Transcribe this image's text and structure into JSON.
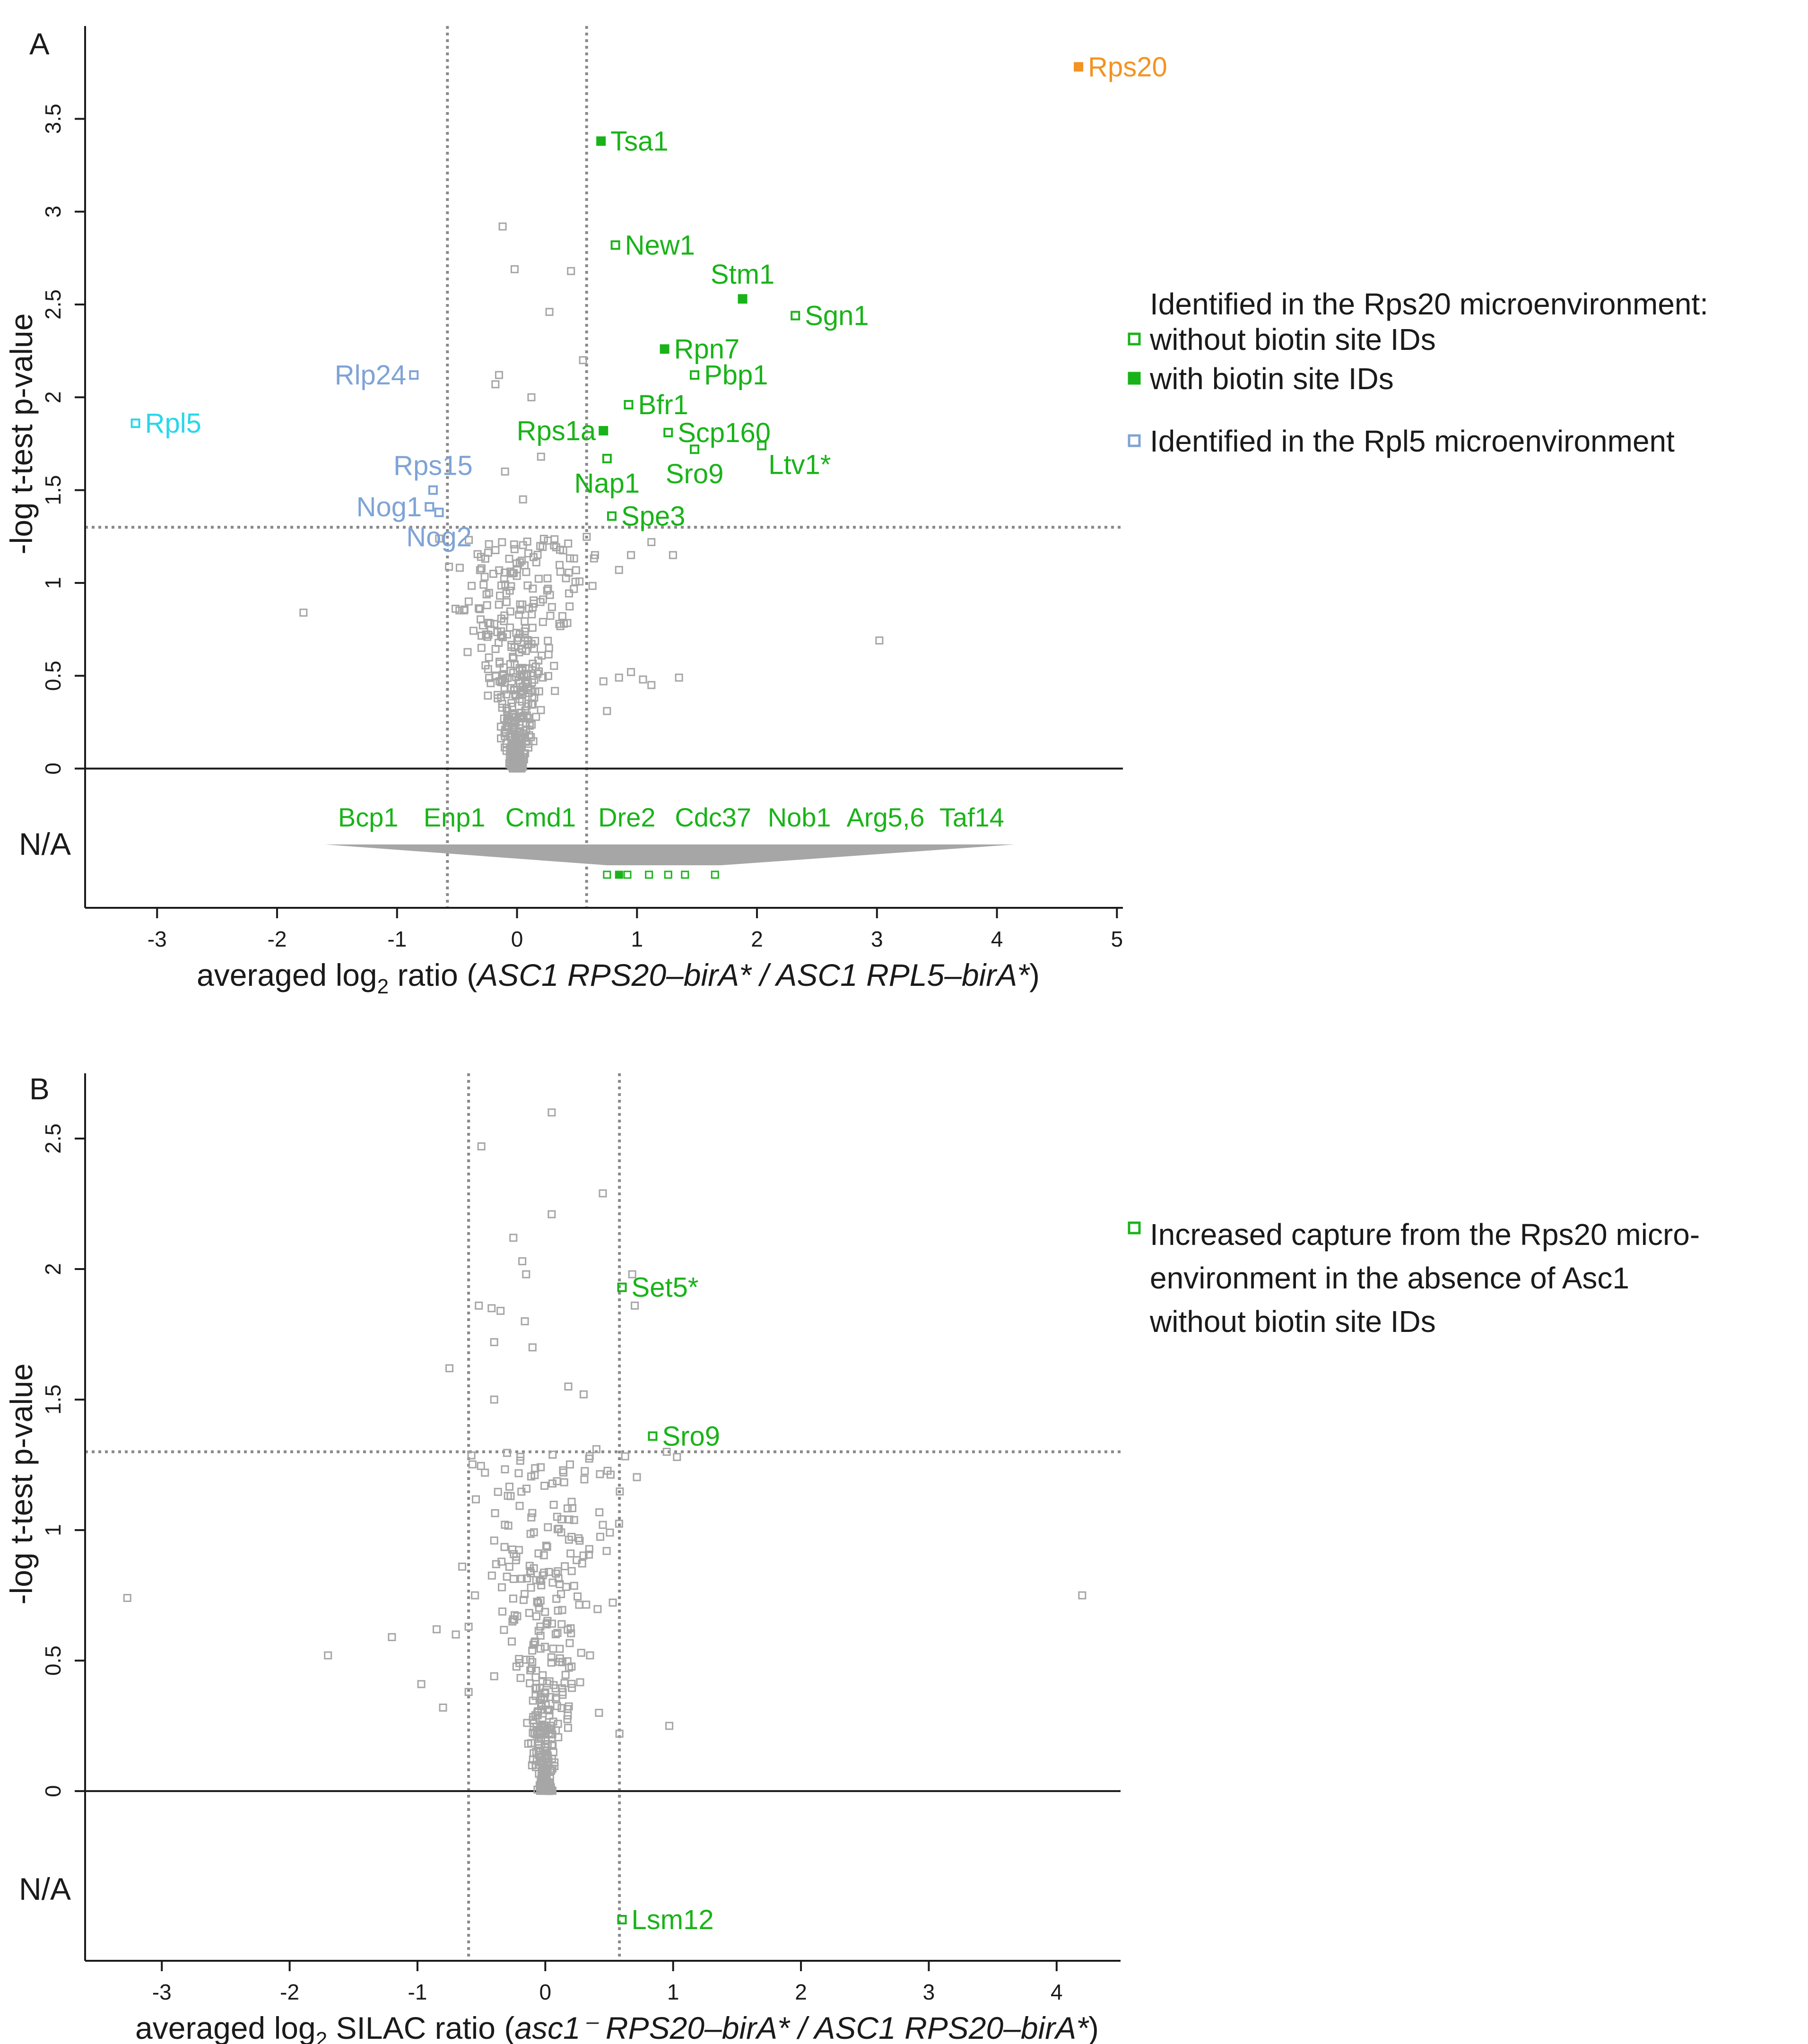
{
  "colors": {
    "green": "#19b319",
    "blue": "#7fa3d6",
    "cyan": "#27d7e9",
    "orange": "#f39321",
    "grey": "#a6a6a6",
    "axis": "#1a1a1a"
  },
  "chart_data": [
    {
      "id": "A",
      "type": "scatter",
      "panel_label": "A",
      "xlim": [
        -3.6,
        5.05
      ],
      "ylim": [
        -0.75,
        4.0
      ],
      "x_ticks": [
        -3,
        -2,
        -1,
        0,
        1,
        2,
        3,
        4,
        5
      ],
      "x_tick_labels": [
        "-3",
        "-2",
        "-1",
        "0",
        "1",
        "2",
        "3",
        "4",
        "5"
      ],
      "y_ticks": [
        0,
        0.5,
        1,
        1.5,
        2,
        2.5,
        3,
        3.5
      ],
      "y_tick_labels": [
        "0",
        "0.5",
        "1",
        "1.5",
        "2",
        "2.5",
        "3",
        "3.5"
      ],
      "ylabel": "-log t-test p-value",
      "xlabel": {
        "prefix": "averaged log",
        "subscript": "2",
        "middle": " ratio (",
        "italic": "ASC1 RPS20–birA* / ASC1 RPL5–birA*",
        "suffix": ")"
      },
      "na_label": "N/A",
      "thresholds": {
        "x": [
          -0.58,
          0.58
        ],
        "y": 1.3
      },
      "na_group_labels": [
        "Bcp1",
        "Enp1",
        "Cmd1",
        "Dre2",
        "Cdc37",
        "Nob1",
        "Arg5,6",
        "Taf14"
      ],
      "na_points": [
        {
          "x": 0.75,
          "filled": false
        },
        {
          "x": 0.85,
          "filled": true
        },
        {
          "x": 0.92,
          "filled": false
        },
        {
          "x": 1.1,
          "filled": false
        },
        {
          "x": 1.26,
          "filled": false
        },
        {
          "x": 1.4,
          "filled": false
        },
        {
          "x": 1.65,
          "filled": false
        }
      ],
      "labeled_points": [
        {
          "label": "Rps20",
          "x": 4.68,
          "y": 3.78,
          "color": "orange",
          "filled": true,
          "label_pos": "right"
        },
        {
          "label": "Tsa1",
          "x": 0.7,
          "y": 3.38,
          "color": "green",
          "filled": true,
          "label_pos": "right"
        },
        {
          "label": "New1",
          "x": 0.82,
          "y": 2.82,
          "color": "green",
          "filled": false,
          "label_pos": "right"
        },
        {
          "label": "Stm1",
          "x": 1.88,
          "y": 2.53,
          "color": "green",
          "filled": true,
          "label_pos": "above"
        },
        {
          "label": "Sgn1",
          "x": 2.32,
          "y": 2.44,
          "color": "green",
          "filled": false,
          "label_pos": "right"
        },
        {
          "label": "Rpn7",
          "x": 1.23,
          "y": 2.26,
          "color": "green",
          "filled": true,
          "label_pos": "right"
        },
        {
          "label": "Pbp1",
          "x": 1.48,
          "y": 2.12,
          "color": "green",
          "filled": false,
          "label_pos": "right"
        },
        {
          "label": "Bfr1",
          "x": 0.93,
          "y": 1.96,
          "color": "green",
          "filled": false,
          "label_pos": "right"
        },
        {
          "label": "Rps1a",
          "x": 0.72,
          "y": 1.82,
          "color": "green",
          "filled": true,
          "label_pos": "left"
        },
        {
          "label": "Scp160",
          "x": 1.26,
          "y": 1.81,
          "color": "green",
          "filled": false,
          "label_pos": "right"
        },
        {
          "label": "Sro9",
          "x": 1.48,
          "y": 1.72,
          "color": "green",
          "filled": false,
          "label_pos": "below"
        },
        {
          "label": "Ltv1*",
          "x": 2.04,
          "y": 1.74,
          "color": "green",
          "filled": false,
          "label_pos": "belowright"
        },
        {
          "label": "Nap1",
          "x": 0.75,
          "y": 1.67,
          "color": "green",
          "filled": false,
          "label_pos": "below"
        },
        {
          "label": "Spe3",
          "x": 0.79,
          "y": 1.36,
          "color": "green",
          "filled": false,
          "label_pos": "right"
        },
        {
          "label": "Rlp24",
          "x": -0.86,
          "y": 2.12,
          "color": "blue",
          "filled": false,
          "label_pos": "left"
        },
        {
          "label": "Rps15",
          "x": -0.7,
          "y": 1.5,
          "color": "blue",
          "filled": false,
          "label_pos": "above"
        },
        {
          "label": "Nog1",
          "x": -0.73,
          "y": 1.41,
          "color": "blue",
          "filled": false,
          "label_pos": "left"
        },
        {
          "label": "Nog2",
          "x": -0.65,
          "y": 1.38,
          "color": "blue",
          "filled": false,
          "label_pos": "below"
        },
        {
          "label": "Rpl5",
          "x": -3.18,
          "y": 1.86,
          "color": "cyan",
          "filled": false,
          "label_pos": "right"
        }
      ],
      "background_extra": [
        [
          -0.12,
          2.92
        ],
        [
          -0.02,
          2.69
        ],
        [
          0.45,
          2.68
        ],
        [
          0.27,
          2.46
        ],
        [
          -0.15,
          2.12
        ],
        [
          -0.18,
          2.07
        ],
        [
          0.55,
          2.2
        ],
        [
          0.12,
          2.0
        ],
        [
          -1.78,
          0.84
        ],
        [
          3.02,
          0.69
        ],
        [
          0.95,
          0.52
        ],
        [
          1.05,
          0.48
        ],
        [
          1.12,
          0.45
        ],
        [
          0.72,
          0.47
        ],
        [
          0.85,
          0.49
        ],
        [
          0.75,
          0.31
        ],
        [
          0.95,
          1.15
        ],
        [
          1.12,
          1.22
        ],
        [
          1.3,
          1.15
        ],
        [
          0.65,
          1.15
        ],
        [
          0.85,
          1.07
        ],
        [
          1.35,
          0.49
        ],
        [
          0.2,
          1.68
        ],
        [
          0.05,
          1.45
        ],
        [
          -0.1,
          1.6
        ]
      ],
      "legend": {
        "title": "Identified in the Rps20 microenvironment:",
        "items": [
          {
            "label": "without biotin site IDs",
            "color": "green",
            "filled": false
          },
          {
            "label": "with biotin site IDs",
            "color": "green",
            "filled": true
          },
          {
            "label": "Identified in the Rpl5 microenvironment",
            "color": "blue",
            "filled": false
          }
        ]
      }
    },
    {
      "id": "B",
      "type": "scatter",
      "panel_label": "B",
      "xlim": [
        -3.6,
        4.5
      ],
      "ylim": [
        -0.65,
        2.75
      ],
      "x_ticks": [
        -3,
        -2,
        -1,
        0,
        1,
        2,
        3,
        4
      ],
      "x_tick_labels": [
        "-3",
        "-2",
        "-1",
        "0",
        "1",
        "2",
        "3",
        "4"
      ],
      "y_ticks": [
        0,
        0.5,
        1,
        1.5,
        2,
        2.5
      ],
      "y_tick_labels": [
        "0",
        "0.5",
        "1",
        "1.5",
        "2",
        "2.5"
      ],
      "ylabel": "-log t-test p-value",
      "xlabel": {
        "prefix": "averaged log",
        "subscript": "2",
        "middle": " SILAC ratio (",
        "italic": "asc1⁻ RPS20–birA* / ASC1 RPS20–birA*",
        "suffix": ")"
      },
      "na_label": "N/A",
      "thresholds": {
        "x": [
          -0.6,
          0.58
        ],
        "y": 1.3
      },
      "labeled_points": [
        {
          "label": "Set5*",
          "x": 0.6,
          "y": 1.93,
          "color": "green",
          "filled": false,
          "label_pos": "right"
        },
        {
          "label": "Sro9",
          "x": 0.84,
          "y": 1.36,
          "color": "green",
          "filled": false,
          "label_pos": "right"
        },
        {
          "label": "Lsm12",
          "x": 0.6,
          "y": -0.5,
          "color": "green",
          "filled": false,
          "label_pos": "right"
        }
      ],
      "background_extra": [
        [
          0.05,
          2.6
        ],
        [
          -0.5,
          2.47
        ],
        [
          0.45,
          2.29
        ],
        [
          0.05,
          2.21
        ],
        [
          -0.25,
          2.12
        ],
        [
          -0.18,
          2.03
        ],
        [
          -0.15,
          1.98
        ],
        [
          -0.52,
          1.86
        ],
        [
          -0.42,
          1.85
        ],
        [
          -0.35,
          1.84
        ],
        [
          -0.16,
          1.8
        ],
        [
          0.68,
          1.98
        ],
        [
          0.7,
          1.86
        ],
        [
          -0.4,
          1.72
        ],
        [
          -0.1,
          1.7
        ],
        [
          -0.75,
          1.62
        ],
        [
          0.18,
          1.55
        ],
        [
          -0.4,
          1.5
        ],
        [
          0.3,
          1.52
        ],
        [
          -3.27,
          0.74
        ],
        [
          4.2,
          0.75
        ],
        [
          -1.7,
          0.52
        ],
        [
          -1.2,
          0.59
        ],
        [
          -0.85,
          0.62
        ],
        [
          -0.97,
          0.41
        ],
        [
          -0.8,
          0.32
        ],
        [
          -0.7,
          0.6
        ],
        [
          0.97,
          0.25
        ],
        [
          0.58,
          0.22
        ],
        [
          0.95,
          1.3
        ],
        [
          1.03,
          1.28
        ],
        [
          0.45,
          1.02
        ],
        [
          -0.6,
          0.38
        ],
        [
          -0.4,
          0.44
        ],
        [
          -0.65,
          0.86
        ],
        [
          -0.55,
          0.75
        ],
        [
          -0.6,
          0.63
        ],
        [
          0.48,
          0.92
        ],
        [
          0.42,
          0.3
        ],
        [
          0.35,
          0.52
        ],
        [
          0.4,
          1.31
        ]
      ]
    }
  ]
}
